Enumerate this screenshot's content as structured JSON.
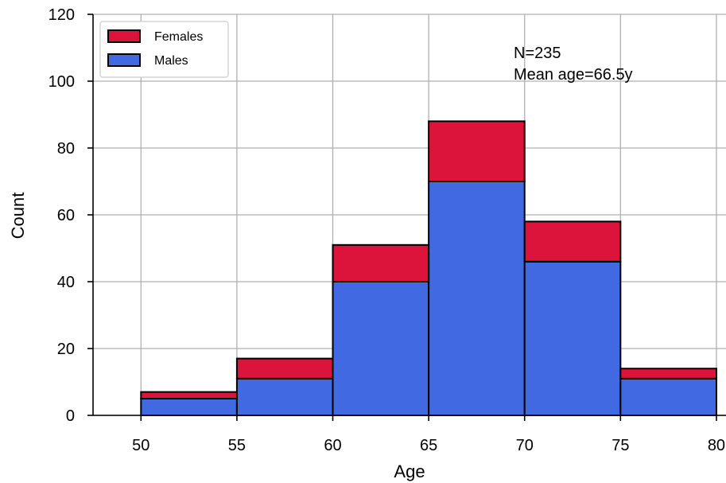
{
  "chart_data": {
    "type": "bar",
    "stacked": true,
    "bin_edges": [
      50,
      55,
      60,
      65,
      70,
      75,
      80
    ],
    "series": [
      {
        "name": "Males",
        "color": "#4169e1",
        "values": [
          5,
          11,
          40,
          70,
          46,
          11
        ]
      },
      {
        "name": "Females",
        "color": "#dc143c",
        "values": [
          2,
          6,
          11,
          18,
          12,
          3
        ]
      }
    ],
    "xlabel": "Age",
    "ylabel": "Count",
    "xlim": [
      47.5,
      80.5
    ],
    "ylim": [
      0,
      120
    ],
    "xticks": [
      50,
      55,
      60,
      65,
      70,
      75,
      80
    ],
    "yticks": [
      0,
      20,
      40,
      60,
      80,
      100,
      120
    ],
    "grid": true,
    "legend": {
      "placement": "top-left",
      "entries": [
        "Females",
        "Males"
      ]
    },
    "annotations": [
      "N=235",
      "Mean age=66.5y"
    ]
  }
}
